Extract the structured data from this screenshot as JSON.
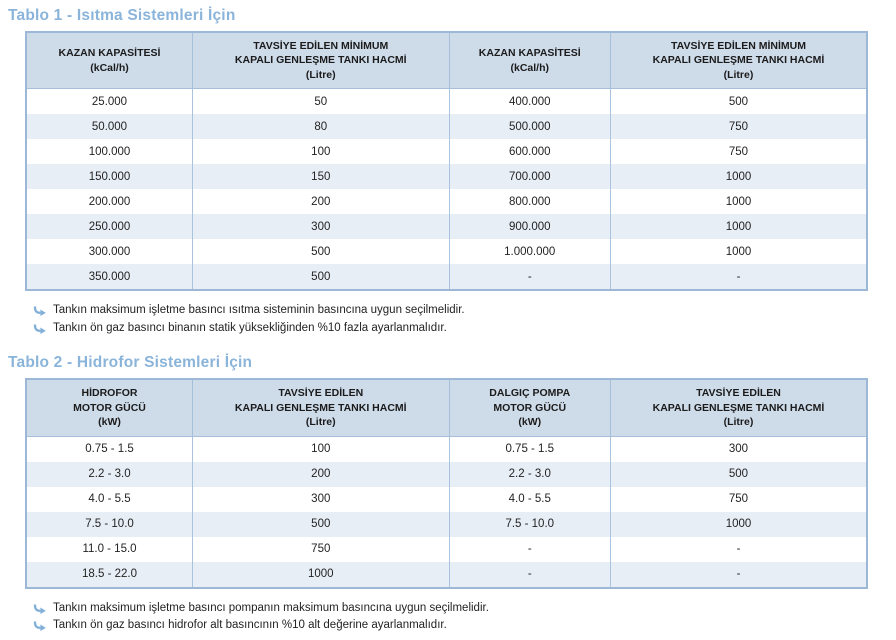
{
  "colors": {
    "title_accent": "#8ab4da",
    "header_bg": "#cedbe9",
    "row_alt_bg": "#e8eef6",
    "table_border": "#9db8d6",
    "cell_border": "#aac3de",
    "text": "#232323",
    "arrow_bullet": "#82b0d9"
  },
  "tables": [
    {
      "title": "Tablo 1 - Isıtma Sistemleri İçin",
      "headers": [
        "KAZAN KAPASİTESİ\n(kCal/h)",
        "TAVSİYE EDİLEN MİNİMUM\nKAPALI GENLEŞME TANKI HACMİ\n(Litre)",
        "KAZAN KAPASİTESİ\n(kCal/h)",
        "TAVSİYE EDİLEN MİNİMUM\nKAPALI GENLEŞME TANKI HACMİ\n(Litre)"
      ],
      "rows": [
        [
          "25.000",
          "50",
          "400.000",
          "500"
        ],
        [
          "50.000",
          "80",
          "500.000",
          "750"
        ],
        [
          "100.000",
          "100",
          "600.000",
          "750"
        ],
        [
          "150.000",
          "150",
          "700.000",
          "1000"
        ],
        [
          "200.000",
          "200",
          "800.000",
          "1000"
        ],
        [
          "250.000",
          "300",
          "900.000",
          "1000"
        ],
        [
          "300.000",
          "500",
          "1.000.000",
          "1000"
        ],
        [
          "350.000",
          "500",
          "-",
          "-"
        ]
      ],
      "notes": [
        "Tankın maksimum işletme basıncı ısıtma sisteminin basıncına uygun seçilmelidir.",
        "Tankın ön gaz basıncı binanın statik yüksekliğinden %10 fazla ayarlanmalıdır."
      ]
    },
    {
      "title": "Tablo 2 - Hidrofor Sistemleri İçin",
      "headers": [
        "HİDROFOR\nMOTOR GÜCÜ\n(kW)",
        "TAVSİYE EDİLEN\nKAPALI GENLEŞME TANKI HACMİ\n(Litre)",
        "DALGIÇ POMPA\nMOTOR GÜCÜ\n(kW)",
        "TAVSİYE EDİLEN\nKAPALI GENLEŞME TANKI HACMİ\n(Litre)"
      ],
      "rows": [
        [
          "0.75 - 1.5",
          "100",
          "0.75 - 1.5",
          "300"
        ],
        [
          "2.2 - 3.0",
          "200",
          "2.2 - 3.0",
          "500"
        ],
        [
          "4.0 - 5.5",
          "300",
          "4.0 - 5.5",
          "750"
        ],
        [
          "7.5 - 10.0",
          "500",
          "7.5 - 10.0",
          "1000"
        ],
        [
          "11.0 - 15.0",
          "750",
          "-",
          "-"
        ],
        [
          "18.5 - 22.0",
          "1000",
          "-",
          "-"
        ]
      ],
      "notes": [
        "Tankın maksimum işletme basıncı pompanın maksimum basıncına uygun seçilmelidir.",
        "Tankın ön gaz basıncı hidrofor alt basıncının %10 alt değerine ayarlanmalıdır."
      ]
    }
  ]
}
